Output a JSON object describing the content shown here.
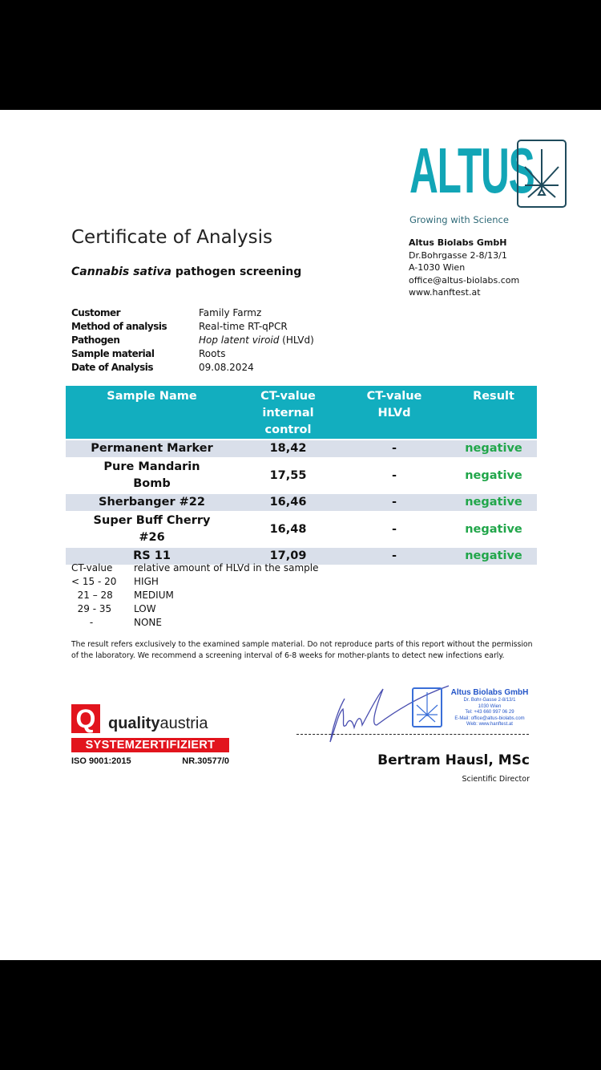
{
  "header": {
    "logo_text": "ALTUS",
    "tagline": "Growing with Science",
    "company": "Altus Biolabs GmbH",
    "address_lines": [
      "Dr.Bohrgasse 2-8/13/1",
      "A-1030 Wien",
      "office@altus-biolabs.com",
      "www.hanftest.at"
    ],
    "brand_color": "#12a5b6"
  },
  "document": {
    "title": "Certificate of Analysis",
    "subtitle_italic": "Cannabis sativa",
    "subtitle_rest": " pathogen screening"
  },
  "info": [
    {
      "label": "Customer",
      "value": "Family Farmz"
    },
    {
      "label": "Method of analysis",
      "value": "Real-time RT-qPCR"
    },
    {
      "label": "Pathogen",
      "value_italic": "Hop latent viroid",
      "value": " (HLVd)"
    },
    {
      "label": "Sample material",
      "value": "Roots"
    },
    {
      "label": "Date of Analysis",
      "value": "09.08.2024"
    }
  ],
  "table": {
    "headers": [
      "Sample Name",
      "CT-value internal control",
      "CT-value HLVd",
      "Result"
    ],
    "rows": [
      {
        "name": "Permanent Marker",
        "ct_control": "18,42",
        "ct_hlvd": "-",
        "result": "negative"
      },
      {
        "name": "Pure Mandarin Bomb",
        "ct_control": "17,55",
        "ct_hlvd": "-",
        "result": "negative"
      },
      {
        "name": "Sherbanger #22",
        "ct_control": "16,46",
        "ct_hlvd": "-",
        "result": "negative"
      },
      {
        "name": "Super Buff Cherry #26",
        "ct_control": "16,48",
        "ct_hlvd": "-",
        "result": "negative"
      },
      {
        "name": "RS 11",
        "ct_control": "17,09",
        "ct_hlvd": "-",
        "result": "negative"
      }
    ],
    "header_color": "#12aebf",
    "negative_color": "#21a64a"
  },
  "legend": [
    {
      "k": "CT-value",
      "v": "relative amount of HLVd in the sample"
    },
    {
      "k": "< 15 - 20",
      "v": "HIGH"
    },
    {
      "k": "  21 – 28",
      "v": "MEDIUM"
    },
    {
      "k": "  29 - 35",
      "v": "LOW"
    },
    {
      "k": "      -",
      "v": "NONE"
    }
  ],
  "disclaimer": "The result refers exclusively to the examined sample material. Do not reproduce parts of this report without the permission of the laboratory. We recommend a screening interval of 6-8 weeks for mother-plants to detect new infections early.",
  "certification": {
    "brand_bold": "quality",
    "brand_rest": "austria",
    "banner": "SYSTEMZERTIFIZIERT",
    "iso": "ISO 9001:2015",
    "number": "NR.30577/0"
  },
  "stamp": {
    "company": "Altus Biolabs GmbH",
    "lines": [
      "Dr. Bohr-Gasse 2-8/13/1",
      "1030 Wien",
      "Tel: +43 660 997 06 29",
      "E-Mail: office@altus-biolabs.com",
      "Web: www.hanftest.at"
    ]
  },
  "signatory": {
    "name": "Bertram Hausl, MSc",
    "role": "Scientific Director"
  }
}
